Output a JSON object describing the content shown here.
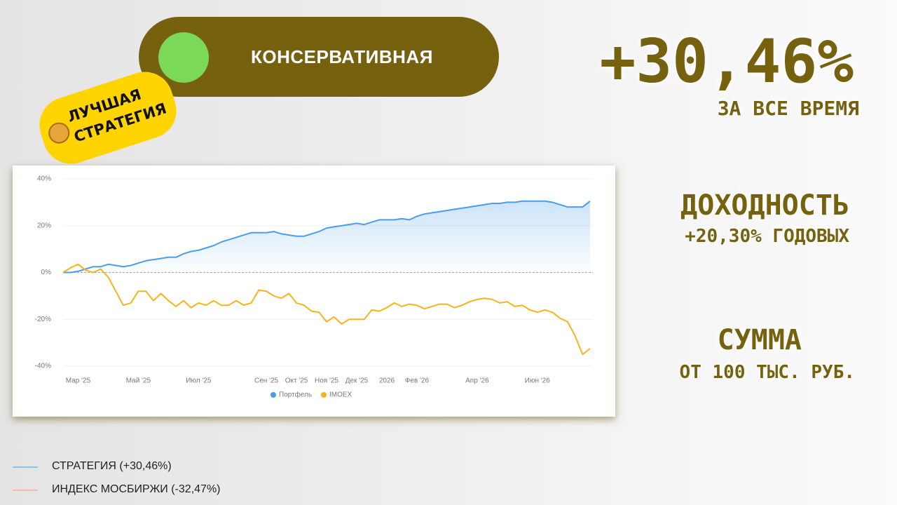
{
  "header": {
    "badge": "КОНСЕРВАТИВНАЯ",
    "total_return": "+30,46%",
    "total_caption": "ЗА ВСЕ ВРЕМЯ",
    "sticker": [
      "ЛУЧШАЯ",
      "СТРАТЕГИЯ"
    ]
  },
  "stats": [
    {
      "title": "ДОХОДНОСТЬ",
      "value": "+20,30% ГОДОВЫХ"
    },
    {
      "title": "СУММА",
      "value": "ОТ 100 ТЫС. РУБ."
    }
  ],
  "legend_note": [
    "СТРАТЕГИЯ (+30,46%)",
    "ИНДЕКС МОСБИРЖИ (-32,47%)"
  ],
  "chart_data": {
    "type": "line",
    "categories": [
      null,
      null,
      "Мар '25",
      null,
      null,
      null,
      null,
      null,
      null,
      null,
      "Май '25",
      null,
      null,
      null,
      null,
      null,
      null,
      null,
      "Июл '25",
      null,
      null,
      null,
      null,
      null,
      null,
      null,
      null,
      "Сен '25",
      null,
      null,
      null,
      "Окт '25",
      null,
      null,
      null,
      "Ноя '25",
      null,
      null,
      null,
      "Дек '25",
      null,
      null,
      null,
      "2026",
      null,
      null,
      null,
      "Фев '26",
      null,
      null,
      null,
      null,
      null,
      null,
      null,
      "Апр '26",
      null,
      null,
      null,
      null,
      null,
      null,
      null,
      "Июн '26",
      null,
      null,
      null,
      null,
      null,
      null,
      null
    ],
    "series": [
      {
        "name": "Портфель",
        "color": "#4a9de8",
        "values": [
          0,
          0,
          0.5,
          1.5,
          2.5,
          2.5,
          3.5,
          3,
          2.5,
          3,
          4,
          5,
          5.5,
          6,
          6.5,
          6.5,
          8,
          9,
          9.5,
          10.5,
          11.5,
          13,
          14,
          15,
          16,
          17,
          17,
          17,
          17.5,
          16.5,
          16,
          15.5,
          15.5,
          16.5,
          17.5,
          19,
          19.5,
          20,
          20.5,
          21,
          20.5,
          21.5,
          22.5,
          22.5,
          22.5,
          23,
          22.5,
          24,
          25,
          25.5,
          26,
          26.5,
          27,
          27.5,
          28,
          28.5,
          29,
          29.5,
          29.5,
          30,
          30,
          30.5,
          30.5,
          30.5,
          30.5,
          30,
          29,
          28,
          28,
          28,
          30.46
        ]
      },
      {
        "name": "IMOEX",
        "color": "#f5b51a",
        "values": [
          0,
          2,
          3.5,
          1,
          0,
          1.5,
          -2,
          -8,
          -14,
          -13,
          -8,
          -8,
          -12,
          -9,
          -12,
          -14.5,
          -12,
          -15,
          -13,
          -14,
          -12,
          -14,
          -14,
          -12,
          -14,
          -13,
          -7.5,
          -8,
          -10,
          -11,
          -9,
          -13,
          -14,
          -16.5,
          -17,
          -21,
          -19,
          -22,
          -20,
          -20,
          -20,
          -16,
          -16.5,
          -15,
          -13,
          -14.5,
          -13.5,
          -14,
          -15.5,
          -14.5,
          -13.5,
          -13.5,
          -15,
          -14,
          -12.5,
          -11.5,
          -11,
          -11.5,
          -13,
          -12.5,
          -14.5,
          -14,
          -16,
          -17,
          -16,
          -17,
          -19.5,
          -21,
          -27,
          -35,
          -32.47
        ]
      }
    ],
    "ylim": [
      -40,
      40
    ],
    "yticks": [
      {
        "value": -40,
        "label": "-40%"
      },
      {
        "value": -20,
        "label": "-20%"
      },
      {
        "value": 0,
        "label": "0%"
      },
      {
        "value": 20,
        "label": "20%"
      },
      {
        "value": 40,
        "label": "40%"
      }
    ],
    "grid": true
  }
}
